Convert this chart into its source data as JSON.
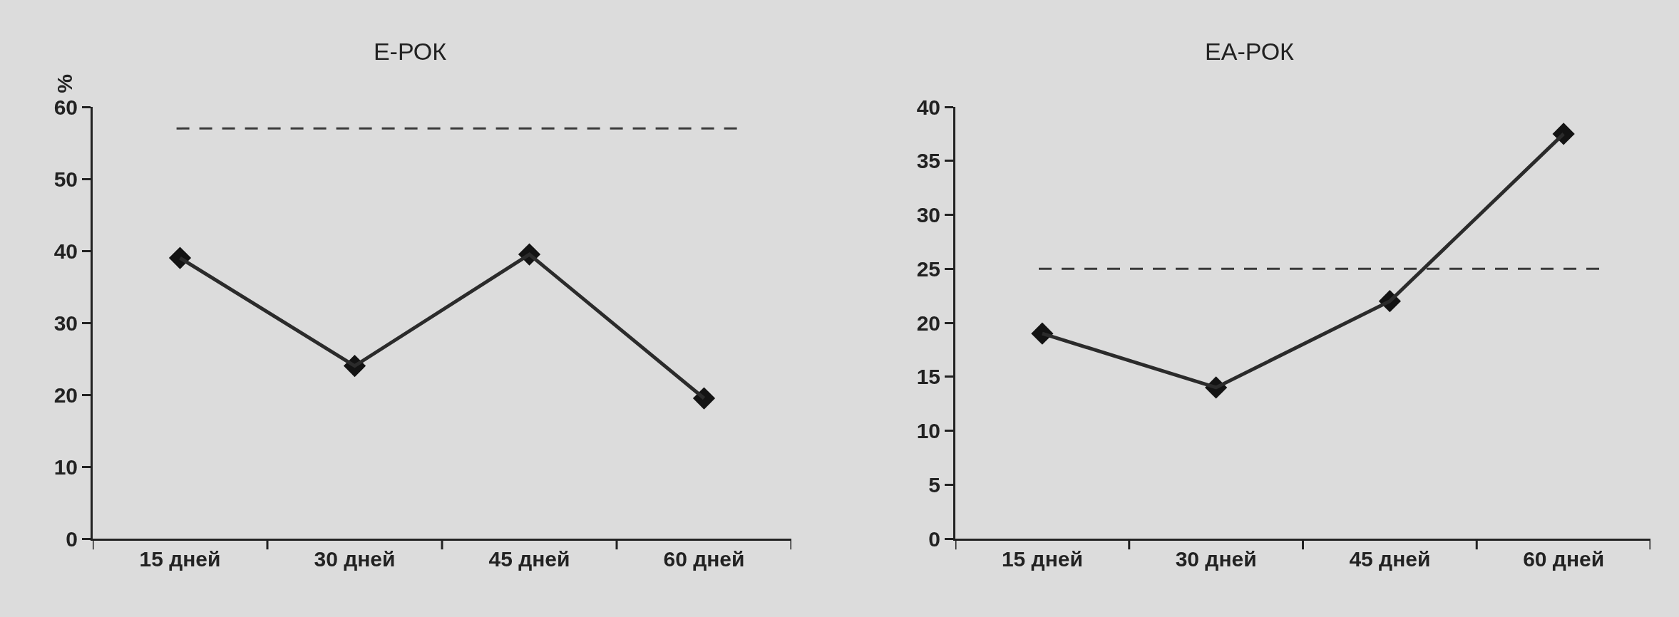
{
  "chart_data": [
    {
      "type": "line",
      "title": "Е-РОК",
      "ylabel": "%",
      "categories": [
        "15 дней",
        "30 дней",
        "45 дней",
        "60 дней"
      ],
      "series": [
        {
          "color": "#2b2b2b",
          "values": [
            39,
            24,
            39.5,
            19.5
          ]
        }
      ],
      "ylim": [
        0,
        60
      ],
      "yticks": [
        0,
        10,
        20,
        30,
        40,
        50,
        60
      ],
      "marker": "diamond",
      "line_style": "solid",
      "ref_lines": [
        {
          "axis": "y",
          "value": 57,
          "color": "#3a3a3a",
          "line_style": "dashed"
        }
      ]
    },
    {
      "type": "line",
      "title": "ЕА-РОК",
      "categories": [
        "15 дней",
        "30 дней",
        "45 дней",
        "60 дней"
      ],
      "series": [
        {
          "color": "#2b2b2b",
          "values": [
            19,
            14,
            22,
            37.5
          ]
        }
      ],
      "ylim": [
        0,
        40
      ],
      "yticks": [
        0,
        5,
        10,
        15,
        20,
        25,
        30,
        35,
        40
      ],
      "marker": "diamond",
      "line_style": "solid",
      "ref_lines": [
        {
          "axis": "y",
          "value": 25,
          "color": "#3a3a3a",
          "line_style": "dashed"
        }
      ]
    }
  ]
}
